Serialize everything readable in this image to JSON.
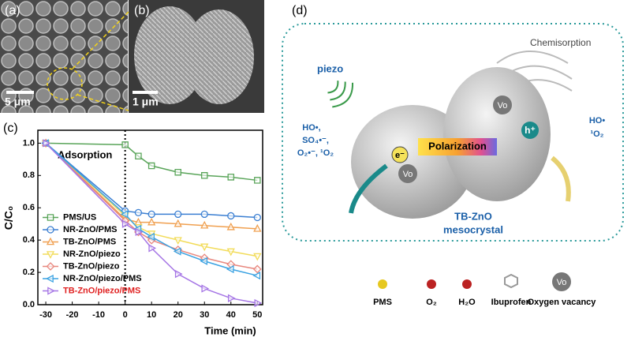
{
  "panels": {
    "a": "(a)",
    "b": "(b)",
    "c": "(c)",
    "d": "(d)"
  },
  "scale_bars": {
    "a": "5 μm",
    "b": "1 μm"
  },
  "chart_data": {
    "type": "line",
    "xlabel": "Time (min)",
    "ylabel": "C/C₀",
    "annotation": "Adsorption",
    "x": [
      -30,
      0,
      5,
      10,
      20,
      30,
      40,
      50
    ],
    "xlim": [
      -33,
      52
    ],
    "xticks": [
      -30,
      -20,
      -10,
      0,
      10,
      20,
      30,
      40,
      50
    ],
    "ylim": [
      0,
      1.08
    ],
    "yticks": [
      {
        "value": 0,
        "label": "0.0"
      },
      0.2,
      0.4,
      0.6,
      0.8,
      {
        "value": 1,
        "label": "1.0"
      }
    ],
    "grid": false,
    "legend": "lower left",
    "series": [
      {
        "name": "PMS/US",
        "color": "#5aa55a",
        "marker": "square",
        "values": [
          1.0,
          0.99,
          0.92,
          0.86,
          0.82,
          0.8,
          0.79,
          0.77
        ]
      },
      {
        "name": "NR-ZnO/PMS",
        "color": "#3b7fd2",
        "marker": "circle",
        "values": [
          1.0,
          0.58,
          0.57,
          0.56,
          0.56,
          0.56,
          0.55,
          0.54
        ]
      },
      {
        "name": "TB-ZnO/PMS",
        "color": "#f0a050",
        "marker": "triangle-up",
        "values": [
          1.0,
          0.53,
          0.51,
          0.51,
          0.5,
          0.49,
          0.48,
          0.47
        ]
      },
      {
        "name": "NR-ZnO/piezo",
        "color": "#f2dc5a",
        "marker": "triangle-down",
        "values": [
          1.0,
          0.55,
          0.48,
          0.44,
          0.4,
          0.36,
          0.33,
          0.3
        ]
      },
      {
        "name": "TB-ZnO/piezo",
        "color": "#e8877e",
        "marker": "diamond",
        "values": [
          1.0,
          0.52,
          0.45,
          0.4,
          0.34,
          0.29,
          0.25,
          0.22
        ]
      },
      {
        "name": "NR-ZnO/piezo/PMS",
        "color": "#3aa2e2",
        "marker": "triangle-left",
        "values": [
          1.0,
          0.56,
          0.47,
          0.42,
          0.33,
          0.27,
          0.22,
          0.18
        ]
      },
      {
        "name": "TB-ZnO/piezo/PMS",
        "color": "#a575e5",
        "marker": "triangle-right",
        "label_color": "#e02020",
        "values": [
          1.0,
          0.5,
          0.45,
          0.35,
          0.19,
          0.1,
          0.04,
          0.01
        ]
      }
    ]
  },
  "schematic": {
    "piezo": "piezo",
    "chemisorption": "Chemisorption",
    "vo": "Vo",
    "left_species": [
      "HO•,",
      "SO₄•⁻,",
      "O₂•⁻, ¹O₂"
    ],
    "right_species": [
      "HO•",
      "¹O₂"
    ],
    "electron": "e⁻",
    "hole": "h⁺",
    "polarization": "Polarization",
    "crystal": [
      "TB-ZnO",
      "mesocrystal"
    ],
    "legend": [
      "PMS",
      "O₂",
      "H₂O",
      "Ibuprofen",
      "Oxygen vacancy"
    ]
  }
}
